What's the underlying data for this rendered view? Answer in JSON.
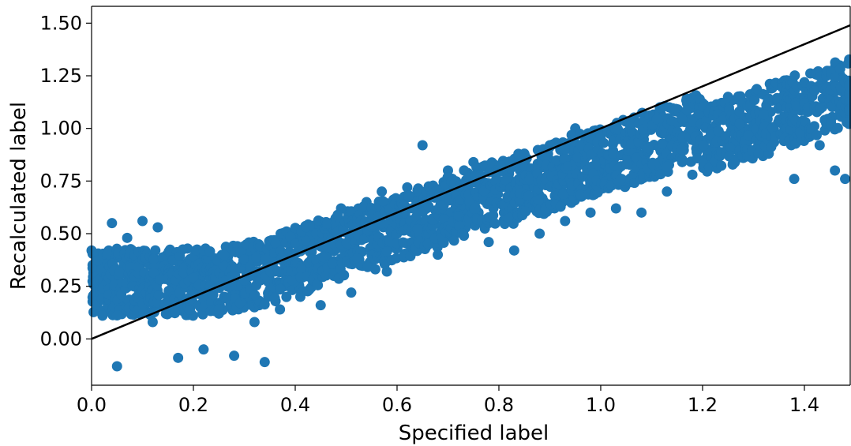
{
  "chart_data": {
    "type": "scatter",
    "title": "",
    "xlabel": "Specified label",
    "ylabel": "Recalculated label",
    "xlim": [
      0.0,
      1.49
    ],
    "ylim": [
      -0.22,
      1.58
    ],
    "xticks": [
      "0.0",
      "0.2",
      "0.4",
      "0.6",
      "0.8",
      "1.0",
      "1.2",
      "1.4"
    ],
    "xtick_values": [
      0.0,
      0.2,
      0.4,
      0.6,
      0.8,
      1.0,
      1.2,
      1.4
    ],
    "yticks": [
      "0.00",
      "0.25",
      "0.50",
      "0.75",
      "1.00",
      "1.25",
      "1.50"
    ],
    "ytick_values": [
      0.0,
      0.25,
      0.5,
      0.75,
      1.0,
      1.25,
      1.5
    ],
    "grid": false,
    "reference_line": {
      "x": [
        0.0,
        1.49
      ],
      "y": [
        0.0,
        1.49
      ],
      "color": "#000000"
    },
    "series": [
      {
        "color": "#1f77b4",
        "points": [
          [
            0.0,
            0.42
          ],
          [
            0.01,
            0.3
          ],
          [
            0.02,
            0.35
          ],
          [
            0.03,
            0.27
          ],
          [
            0.04,
            0.55
          ],
          [
            0.04,
            0.3
          ],
          [
            0.05,
            0.22
          ],
          [
            0.05,
            -0.13
          ],
          [
            0.06,
            0.38
          ],
          [
            0.07,
            0.48
          ],
          [
            0.08,
            0.28
          ],
          [
            0.08,
            0.13
          ],
          [
            0.09,
            0.32
          ],
          [
            0.1,
            0.56
          ],
          [
            0.1,
            0.22
          ],
          [
            0.11,
            0.4
          ],
          [
            0.12,
            0.3
          ],
          [
            0.12,
            0.08
          ],
          [
            0.13,
            0.53
          ],
          [
            0.14,
            0.29
          ],
          [
            0.15,
            0.31
          ],
          [
            0.16,
            0.14
          ],
          [
            0.17,
            -0.09
          ],
          [
            0.18,
            0.33
          ],
          [
            0.19,
            0.29
          ],
          [
            0.2,
            0.17
          ],
          [
            0.21,
            0.3
          ],
          [
            0.22,
            -0.05
          ],
          [
            0.23,
            0.38
          ],
          [
            0.24,
            0.28
          ],
          [
            0.25,
            0.12
          ],
          [
            0.26,
            0.27
          ],
          [
            0.27,
            0.35
          ],
          [
            0.28,
            -0.08
          ],
          [
            0.29,
            0.16
          ],
          [
            0.3,
            0.33
          ],
          [
            0.31,
            0.22
          ],
          [
            0.32,
            0.08
          ],
          [
            0.33,
            0.3
          ],
          [
            0.34,
            -0.11
          ],
          [
            0.35,
            0.36
          ],
          [
            0.36,
            0.25
          ],
          [
            0.37,
            0.14
          ],
          [
            0.38,
            0.35
          ],
          [
            0.39,
            0.3
          ],
          [
            0.4,
            0.48
          ],
          [
            0.41,
            0.2
          ],
          [
            0.42,
            0.34
          ],
          [
            0.43,
            0.5
          ],
          [
            0.44,
            0.31
          ],
          [
            0.45,
            0.16
          ],
          [
            0.46,
            0.42
          ],
          [
            0.47,
            0.55
          ],
          [
            0.48,
            0.3
          ],
          [
            0.49,
            0.62
          ],
          [
            0.5,
            0.38
          ],
          [
            0.51,
            0.22
          ],
          [
            0.52,
            0.56
          ],
          [
            0.53,
            0.47
          ],
          [
            0.54,
            0.65
          ],
          [
            0.55,
            0.4
          ],
          [
            0.56,
            0.55
          ],
          [
            0.57,
            0.7
          ],
          [
            0.58,
            0.32
          ],
          [
            0.59,
            0.62
          ],
          [
            0.6,
            0.5
          ],
          [
            0.61,
            0.58
          ],
          [
            0.62,
            0.72
          ],
          [
            0.63,
            0.45
          ],
          [
            0.64,
            0.6
          ],
          [
            0.65,
            0.92
          ],
          [
            0.66,
            0.52
          ],
          [
            0.67,
            0.68
          ],
          [
            0.68,
            0.4
          ],
          [
            0.69,
            0.62
          ],
          [
            0.7,
            0.8
          ],
          [
            0.71,
            0.55
          ],
          [
            0.72,
            0.7
          ],
          [
            0.73,
            0.5
          ],
          [
            0.74,
            0.66
          ],
          [
            0.75,
            0.84
          ],
          [
            0.76,
            0.6
          ],
          [
            0.77,
            0.72
          ],
          [
            0.78,
            0.46
          ],
          [
            0.79,
            0.68
          ],
          [
            0.8,
            0.82
          ],
          [
            0.81,
            0.6
          ],
          [
            0.82,
            0.76
          ],
          [
            0.83,
            0.42
          ],
          [
            0.84,
            0.7
          ],
          [
            0.85,
            0.88
          ],
          [
            0.86,
            0.64
          ],
          [
            0.87,
            0.78
          ],
          [
            0.88,
            0.5
          ],
          [
            0.89,
            0.74
          ],
          [
            0.9,
            0.92
          ],
          [
            0.91,
            0.68
          ],
          [
            0.92,
            0.82
          ],
          [
            0.93,
            0.56
          ],
          [
            0.94,
            0.76
          ],
          [
            0.95,
            1.0
          ],
          [
            0.96,
            0.7
          ],
          [
            0.97,
            0.86
          ],
          [
            0.98,
            0.6
          ],
          [
            0.99,
            0.8
          ],
          [
            1.0,
            0.95
          ],
          [
            1.01,
            0.74
          ],
          [
            1.02,
            0.88
          ],
          [
            1.03,
            0.62
          ],
          [
            1.04,
            0.82
          ],
          [
            1.05,
            0.98
          ],
          [
            1.06,
            0.76
          ],
          [
            1.07,
            0.9
          ],
          [
            1.08,
            0.6
          ],
          [
            1.09,
            0.84
          ],
          [
            1.1,
            1.02
          ],
          [
            1.11,
            0.8
          ],
          [
            1.12,
            0.92
          ],
          [
            1.13,
            0.7
          ],
          [
            1.14,
            0.86
          ],
          [
            1.15,
            1.08
          ],
          [
            1.16,
            0.84
          ],
          [
            1.17,
            0.96
          ],
          [
            1.18,
            0.78
          ],
          [
            1.19,
            0.9
          ],
          [
            1.2,
            1.12
          ],
          [
            1.21,
            0.88
          ],
          [
            1.22,
            1.0
          ],
          [
            1.23,
            0.82
          ],
          [
            1.24,
            0.95
          ],
          [
            1.25,
            1.15
          ],
          [
            1.26,
            0.9
          ],
          [
            1.27,
            1.04
          ],
          [
            1.28,
            0.86
          ],
          [
            1.29,
            0.98
          ],
          [
            1.3,
            1.16
          ],
          [
            1.31,
            0.92
          ],
          [
            1.32,
            1.06
          ],
          [
            1.33,
            0.88
          ],
          [
            1.34,
            1.0
          ],
          [
            1.35,
            1.12
          ],
          [
            1.36,
            0.94
          ],
          [
            1.37,
            1.08
          ],
          [
            1.38,
            0.76
          ],
          [
            1.39,
            1.02
          ],
          [
            1.4,
            1.14
          ],
          [
            1.41,
            0.96
          ],
          [
            1.42,
            1.1
          ],
          [
            1.43,
            0.92
          ],
          [
            1.44,
            1.04
          ],
          [
            1.45,
            1.16
          ],
          [
            1.46,
            0.8
          ],
          [
            1.47,
            1.08
          ],
          [
            1.48,
            0.76
          ],
          [
            1.49,
            1.05
          ]
        ]
      }
    ]
  }
}
